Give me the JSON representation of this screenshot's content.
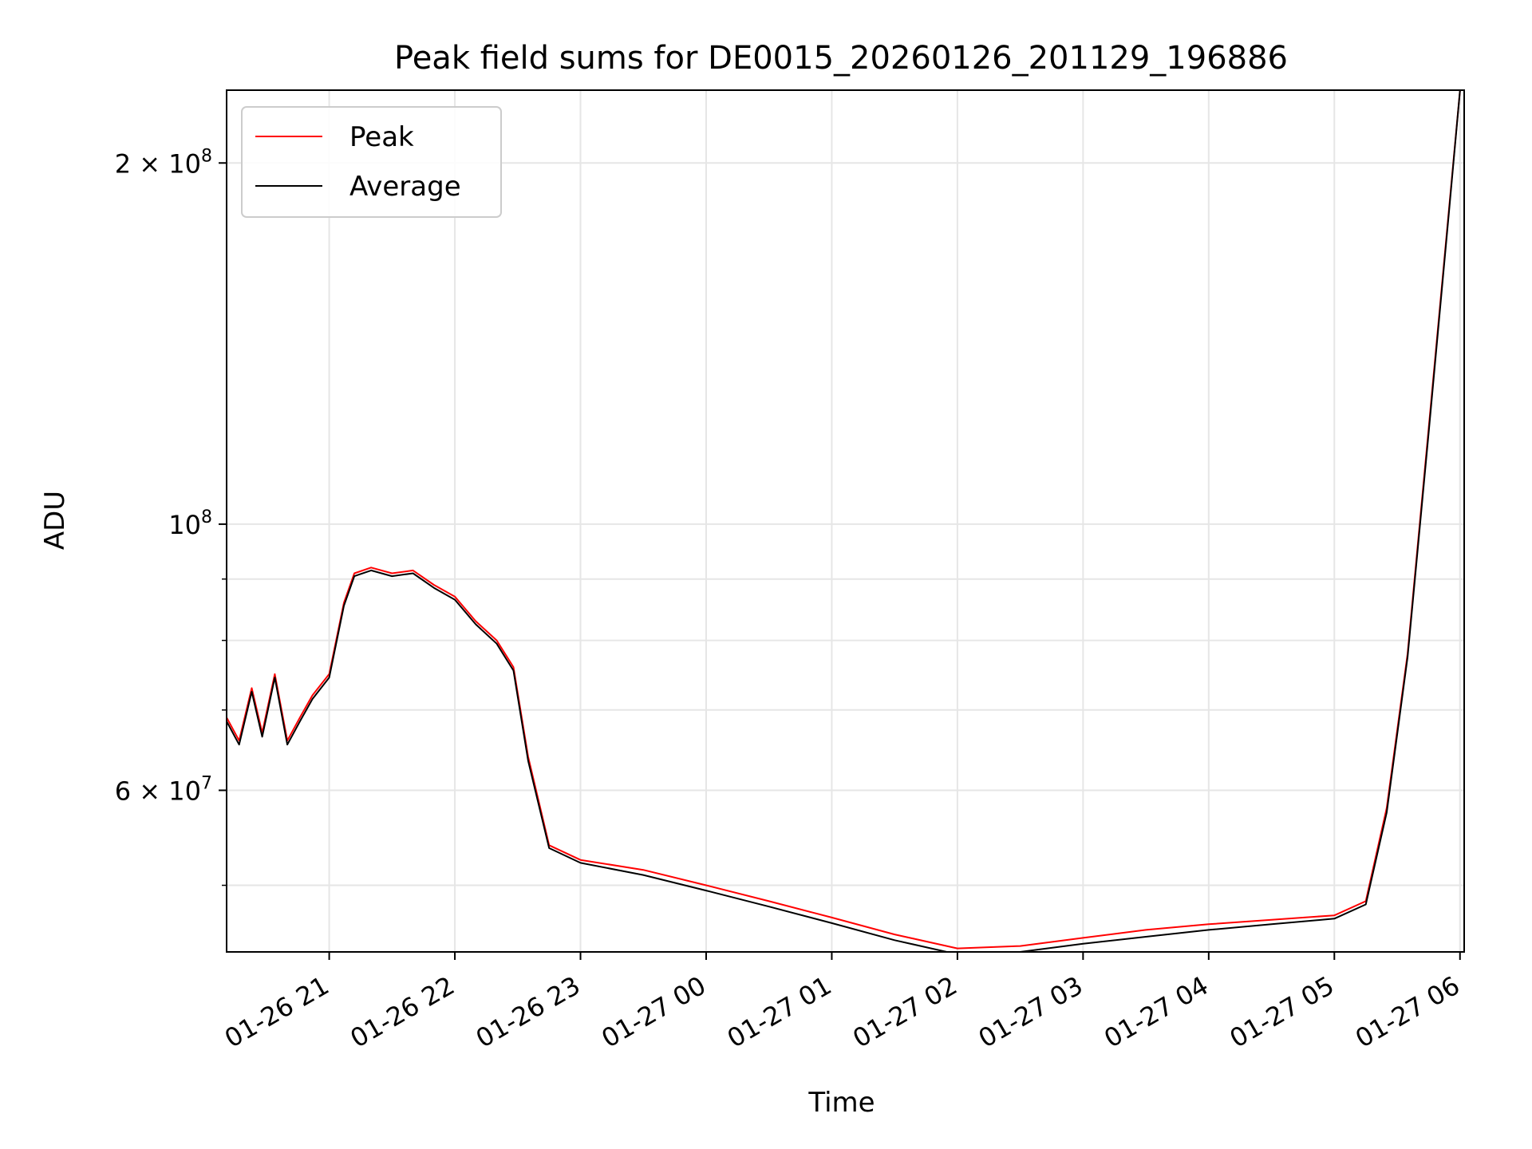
{
  "chart_data": {
    "type": "line",
    "title": "Peak field sums for DE0015_20260126_201129_196886",
    "xlabel": "Time",
    "ylabel": "ADU",
    "yscale": "log",
    "ylim": [
      44000000,
      230000000
    ],
    "xlim": [
      "2026-01-26 20:11",
      "2026-01-27 06:02"
    ],
    "grid": true,
    "legend_position": "top-left",
    "x_tick_labels": [
      "01-26 21",
      "01-26 22",
      "01-26 23",
      "01-27 00",
      "01-27 01",
      "01-27 02",
      "01-27 03",
      "01-27 04",
      "01-27 05",
      "01-27 06"
    ],
    "y_major_ticks": [
      {
        "value": 60000000,
        "mantissa": "6",
        "exponent": "7"
      },
      {
        "value": 100000000,
        "mantissa": "",
        "exponent": "8"
      },
      {
        "value": 200000000,
        "mantissa": "2",
        "exponent": "8"
      }
    ],
    "y_minor_ticks": [
      50000000,
      70000000,
      80000000,
      90000000
    ],
    "series": [
      {
        "name": "Peak",
        "color": "#ff0000",
        "x": [
          "2026-01-26 20:11",
          "2026-01-26 20:17",
          "2026-01-26 20:23",
          "2026-01-26 20:28",
          "2026-01-26 20:34",
          "2026-01-26 20:40",
          "2026-01-26 20:46",
          "2026-01-26 20:52",
          "2026-01-26 21:00",
          "2026-01-26 21:07",
          "2026-01-26 21:12",
          "2026-01-26 21:20",
          "2026-01-26 21:30",
          "2026-01-26 21:40",
          "2026-01-26 21:50",
          "2026-01-26 22:00",
          "2026-01-26 22:10",
          "2026-01-26 22:20",
          "2026-01-26 22:28",
          "2026-01-26 22:35",
          "2026-01-26 22:45",
          "2026-01-26 23:00",
          "2026-01-26 23:30",
          "2026-01-27 00:00",
          "2026-01-27 00:30",
          "2026-01-27 01:00",
          "2026-01-27 01:30",
          "2026-01-27 02:00",
          "2026-01-27 02:30",
          "2026-01-27 03:00",
          "2026-01-27 03:30",
          "2026-01-27 04:00",
          "2026-01-27 04:30",
          "2026-01-27 05:00",
          "2026-01-27 05:15",
          "2026-01-27 05:25",
          "2026-01-27 05:35",
          "2026-01-27 05:45",
          "2026-01-27 05:55",
          "2026-01-27 06:00"
        ],
        "values": [
          69000000,
          66000000,
          73000000,
          67000000,
          75000000,
          66000000,
          69000000,
          72000000,
          75000000,
          86000000,
          91000000,
          92000000,
          91000000,
          91500000,
          89000000,
          87000000,
          83000000,
          80000000,
          76000000,
          64000000,
          54000000,
          52500000,
          51500000,
          50000000,
          48500000,
          47000000,
          45500000,
          44300000,
          44500000,
          45200000,
          45900000,
          46400000,
          46800000,
          47200000,
          48500000,
          58000000,
          78000000,
          120000000,
          185000000,
          230000000
        ]
      },
      {
        "name": "Average",
        "color": "#000000",
        "x": [
          "2026-01-26 20:11",
          "2026-01-26 20:17",
          "2026-01-26 20:23",
          "2026-01-26 20:28",
          "2026-01-26 20:34",
          "2026-01-26 20:40",
          "2026-01-26 20:46",
          "2026-01-26 20:52",
          "2026-01-26 21:00",
          "2026-01-26 21:07",
          "2026-01-26 21:12",
          "2026-01-26 21:20",
          "2026-01-26 21:30",
          "2026-01-26 21:40",
          "2026-01-26 21:50",
          "2026-01-26 22:00",
          "2026-01-26 22:10",
          "2026-01-26 22:20",
          "2026-01-26 22:28",
          "2026-01-26 22:35",
          "2026-01-26 22:45",
          "2026-01-26 23:00",
          "2026-01-26 23:30",
          "2026-01-27 00:00",
          "2026-01-27 00:30",
          "2026-01-27 01:00",
          "2026-01-27 01:30",
          "2026-01-27 02:00",
          "2026-01-27 02:30",
          "2026-01-27 03:00",
          "2026-01-27 03:30",
          "2026-01-27 04:00",
          "2026-01-27 04:30",
          "2026-01-27 05:00",
          "2026-01-27 05:15",
          "2026-01-27 05:25",
          "2026-01-27 05:35",
          "2026-01-27 05:45",
          "2026-01-27 05:55",
          "2026-01-27 06:00"
        ],
        "values": [
          68500000,
          65500000,
          72500000,
          66500000,
          74500000,
          65500000,
          68500000,
          71500000,
          74500000,
          85500000,
          90500000,
          91500000,
          90500000,
          91000000,
          88500000,
          86500000,
          82500000,
          79500000,
          75500000,
          63500000,
          53700000,
          52200000,
          51000000,
          49500000,
          48000000,
          46500000,
          45000000,
          43800000,
          44000000,
          44700000,
          45300000,
          45900000,
          46400000,
          46900000,
          48200000,
          57500000,
          77500000,
          119000000,
          184000000,
          230000000
        ]
      }
    ]
  }
}
